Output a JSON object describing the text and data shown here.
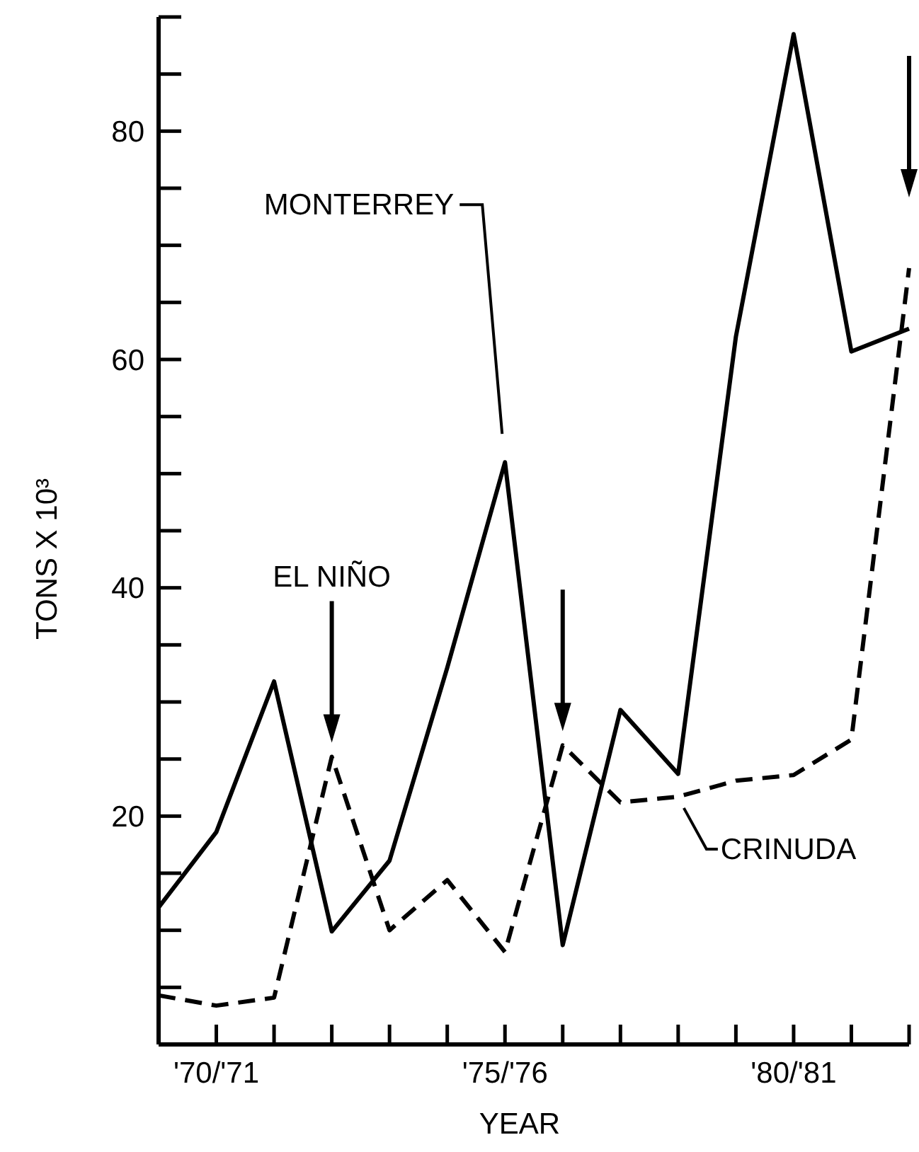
{
  "chart_data": {
    "type": "line",
    "xlabel": "YEAR",
    "ylabel": "TONS X 10³",
    "categories": [
      null,
      "'70/'71",
      null,
      null,
      null,
      null,
      "'75/'76",
      null,
      null,
      null,
      null,
      "'80/'81",
      null,
      null
    ],
    "series": [
      {
        "color": "#000000",
        "line_style": "solid",
        "values": [
          12,
          18.6,
          31.8,
          9.9,
          16.1,
          33,
          51,
          8.7,
          29.3,
          23.7,
          62,
          88.5,
          60.7,
          62.7
        ]
      },
      {
        "color": "#000000",
        "line_style": "dashed",
        "values": [
          4.3,
          3.4,
          4.1,
          25.2,
          10,
          14.4,
          8.1,
          26.2,
          21.2,
          21.7,
          23.1,
          23.6,
          26.7,
          68
        ]
      }
    ],
    "ylim": [
      0,
      90
    ],
    "yticks": [
      {
        "value": 5,
        "label": null
      },
      {
        "value": 10,
        "label": null
      },
      {
        "value": 15,
        "label": null
      },
      20,
      {
        "value": 25,
        "label": null
      },
      {
        "value": 30,
        "label": null
      },
      {
        "value": 35,
        "label": null
      },
      40,
      {
        "value": 45,
        "label": null
      },
      {
        "value": 50,
        "label": null
      },
      {
        "value": 55,
        "label": null
      },
      60,
      {
        "value": 65,
        "label": null
      },
      {
        "value": 70,
        "label": null
      },
      {
        "value": 75,
        "label": null
      },
      80,
      {
        "value": 85,
        "label": null
      },
      {
        "value": 90,
        "label": null
      }
    ],
    "grid": false,
    "marker": "none",
    "annotations": [
      "MONTERREY",
      "EL NIÑO",
      "CRINUDA"
    ]
  }
}
